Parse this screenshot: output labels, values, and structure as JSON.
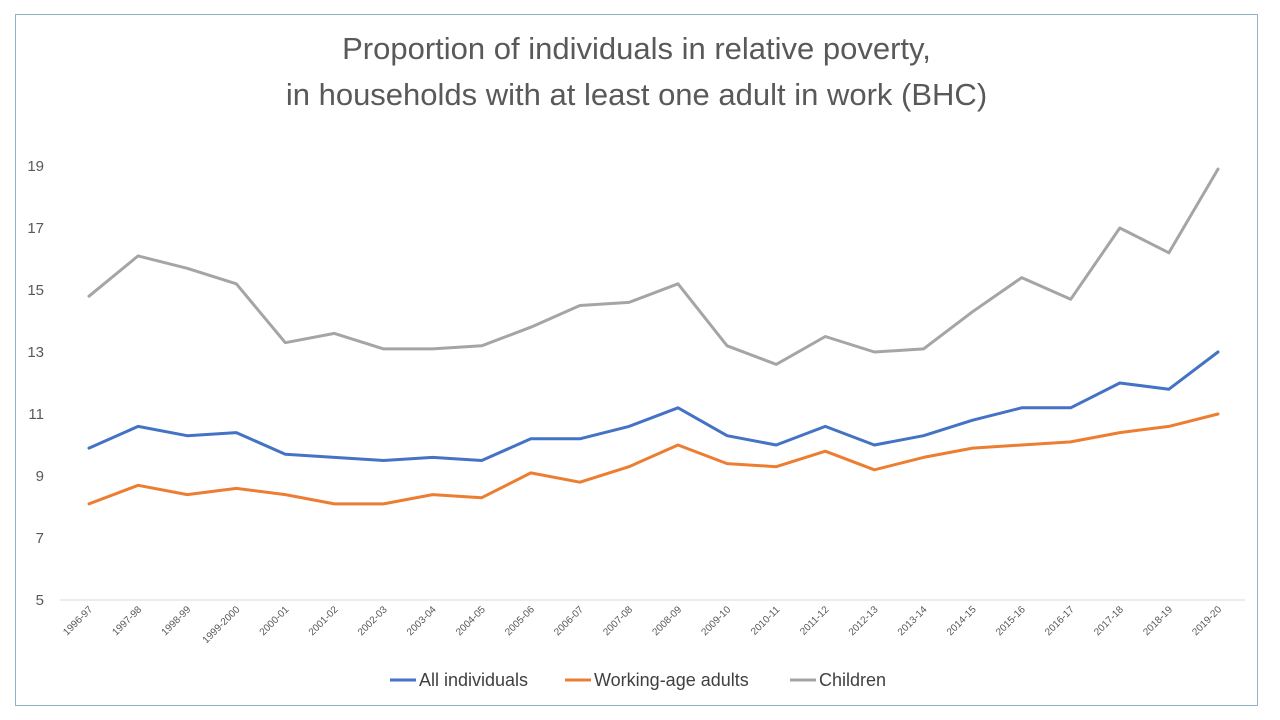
{
  "chart_data": {
    "type": "line",
    "title_line1": "Proportion of individuals  in relative poverty,",
    "title_line2": "in households with at least one adult in work (BHC)",
    "xlabel": "",
    "ylabel": "",
    "ylim": [
      5,
      19
    ],
    "yticks": [
      5,
      7,
      9,
      11,
      13,
      15,
      17,
      19
    ],
    "grid": false,
    "legend_position": "bottom",
    "categories": [
      "1996-97",
      "1997-98",
      "1998-99",
      "1999-2000",
      "2000-01",
      "2001-02",
      "2002-03",
      "2003-04",
      "2004-05",
      "2005-06",
      "2006-07",
      "2007-08",
      "2008-09",
      "2009-10",
      "2010-11",
      "2011-12",
      "2012-13",
      "2013-14",
      "2014-15",
      "2015-16",
      "2016-17",
      "2017-18",
      "2018-19",
      "2019-20"
    ],
    "series": [
      {
        "name": "All individuals",
        "color": "#4472c4",
        "values": [
          9.9,
          10.6,
          10.3,
          10.4,
          9.7,
          9.6,
          9.5,
          9.6,
          9.5,
          10.2,
          10.2,
          10.6,
          11.2,
          10.3,
          10.0,
          10.6,
          10.0,
          10.3,
          10.8,
          11.2,
          11.2,
          12.0,
          11.8,
          13.0
        ]
      },
      {
        "name": "Working-age adults",
        "color": "#ed7d31",
        "values": [
          8.1,
          8.7,
          8.4,
          8.6,
          8.4,
          8.1,
          8.1,
          8.4,
          8.3,
          9.1,
          8.8,
          9.3,
          10.0,
          9.4,
          9.3,
          9.8,
          9.2,
          9.6,
          9.9,
          10.0,
          10.1,
          10.4,
          10.6,
          11.0
        ]
      },
      {
        "name": "Children",
        "color": "#a5a5a5",
        "values": [
          14.8,
          16.1,
          15.7,
          15.2,
          13.3,
          13.6,
          13.1,
          13.1,
          13.2,
          13.8,
          14.5,
          14.6,
          15.2,
          13.2,
          12.6,
          13.5,
          13.0,
          13.1,
          14.3,
          15.4,
          14.7,
          17.0,
          16.2,
          18.9
        ]
      }
    ]
  }
}
